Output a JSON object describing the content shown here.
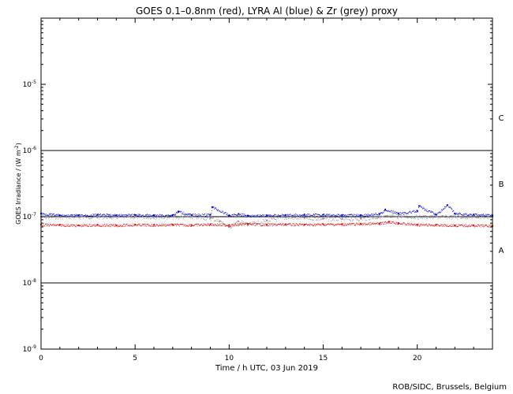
{
  "chart_data": {
    "type": "scatter",
    "title": "GOES 0.1–0.8nm (red), LYRA Al (blue) & Zr (grey) proxy",
    "xlabel": "Time / h UTC, 03 Jun 2019",
    "ylabel": "GOES Irradiance / (W m",
    "ylabel_sup": "-2",
    "ylabel_end": ")",
    "xlim": [
      0,
      24
    ],
    "ylim_exponent": [
      -9,
      -4
    ],
    "yscale": "log",
    "x_ticks": [
      {
        "value": 0,
        "label": "0"
      },
      {
        "value": 5,
        "label": "5"
      },
      {
        "value": 10,
        "label": "10"
      },
      {
        "value": 15,
        "label": "15"
      },
      {
        "value": 20,
        "label": "20"
      }
    ],
    "y_ticks": [
      {
        "exp": -9,
        "base": "10",
        "sup": "-9"
      },
      {
        "exp": -8,
        "base": "10",
        "sup": "-8"
      },
      {
        "exp": -7,
        "base": "10",
        "sup": "-7"
      },
      {
        "exp": -6,
        "base": "10",
        "sup": "-6"
      },
      {
        "exp": -5,
        "base": "10",
        "sup": "-5"
      }
    ],
    "class_thresholds": [
      1e-08,
      1e-07,
      1e-06
    ],
    "flare_classes": [
      {
        "label": "C",
        "exp_center": -5.5
      },
      {
        "label": "B",
        "exp_center": -6.5
      },
      {
        "label": "A",
        "exp_center": -7.5
      }
    ],
    "series": [
      {
        "name": "GOES 0.1–0.8nm",
        "color": "#e00000",
        "points": [
          [
            0,
            7.6e-08
          ],
          [
            1,
            7.5e-08
          ],
          [
            2,
            7.4e-08
          ],
          [
            3,
            7.5e-08
          ],
          [
            4,
            7.4e-08
          ],
          [
            5,
            7.6e-08
          ],
          [
            6,
            7.5e-08
          ],
          [
            7,
            7.6e-08
          ],
          [
            8,
            7.5e-08
          ],
          [
            9,
            7.7e-08
          ],
          [
            10,
            7.5e-08
          ],
          [
            11,
            7.8e-08
          ],
          [
            12,
            7.6e-08
          ],
          [
            13,
            7.7e-08
          ],
          [
            14,
            7.6e-08
          ],
          [
            15,
            7.7e-08
          ],
          [
            16,
            7.7e-08
          ],
          [
            17,
            7.8e-08
          ],
          [
            18,
            7.9e-08
          ],
          [
            18.5,
            8.4e-08
          ],
          [
            19,
            8e-08
          ],
          [
            20,
            7.6e-08
          ],
          [
            21,
            7.5e-08
          ],
          [
            22,
            7.4e-08
          ],
          [
            23,
            7.4e-08
          ],
          [
            24,
            7.3e-08
          ]
        ]
      },
      {
        "name": "LYRA Al",
        "color": "#0000d0",
        "points": [
          [
            0,
            1.12e-07
          ],
          [
            1,
            1.05e-07
          ],
          [
            2,
            1.05e-07
          ],
          [
            3,
            1.07e-07
          ],
          [
            4,
            1.05e-07
          ],
          [
            5,
            1.06e-07
          ],
          [
            6,
            1.05e-07
          ],
          [
            7,
            1.06e-07
          ],
          [
            7.3,
            1.2e-07
          ],
          [
            8,
            1.06e-07
          ],
          [
            9,
            1.07e-07
          ],
          [
            9.1,
            1.4e-07
          ],
          [
            10,
            1.05e-07
          ],
          [
            10.5,
            1.1e-07
          ],
          [
            11,
            1.04e-07
          ],
          [
            12,
            1.05e-07
          ],
          [
            13,
            1.06e-07
          ],
          [
            14,
            1.07e-07
          ],
          [
            15,
            1.07e-07
          ],
          [
            16,
            1.06e-07
          ],
          [
            17,
            1.06e-07
          ],
          [
            18,
            1.1e-07
          ],
          [
            18.3,
            1.28e-07
          ],
          [
            19,
            1.12e-07
          ],
          [
            20,
            1.22e-07
          ],
          [
            20.1,
            1.45e-07
          ],
          [
            21,
            1.08e-07
          ],
          [
            21.6,
            1.5e-07
          ],
          [
            22,
            1.12e-07
          ],
          [
            23,
            1.08e-07
          ],
          [
            24,
            1.05e-07
          ]
        ]
      },
      {
        "name": "LYRA Zr",
        "color": "#8a8a8a",
        "points": [
          [
            0,
            1e-07
          ],
          [
            1,
            1e-07
          ],
          [
            2,
            1e-07
          ],
          [
            3,
            1e-07
          ],
          [
            4,
            1e-07
          ],
          [
            5,
            1e-07
          ],
          [
            6,
            1e-07
          ],
          [
            7,
            1e-07
          ],
          [
            8,
            1e-07
          ],
          [
            9,
            9.5e-08
          ],
          [
            9.5,
            8.6e-08
          ],
          [
            10,
            7e-08
          ],
          [
            10.5,
            8.5e-08
          ],
          [
            11,
            7.6e-08
          ],
          [
            12,
            8.8e-08
          ],
          [
            13,
            9.8e-08
          ],
          [
            14,
            9.6e-08
          ],
          [
            15,
            9.4e-08
          ],
          [
            16,
            9.2e-08
          ],
          [
            17,
            9.4e-08
          ],
          [
            18,
            1e-07
          ],
          [
            19,
            1.02e-07
          ],
          [
            20,
            1e-07
          ],
          [
            21,
            1e-07
          ],
          [
            22,
            1e-07
          ],
          [
            23,
            1e-07
          ],
          [
            24,
            1e-07
          ]
        ]
      }
    ],
    "credit": "ROB/SIDC, Brussels, Belgium"
  }
}
